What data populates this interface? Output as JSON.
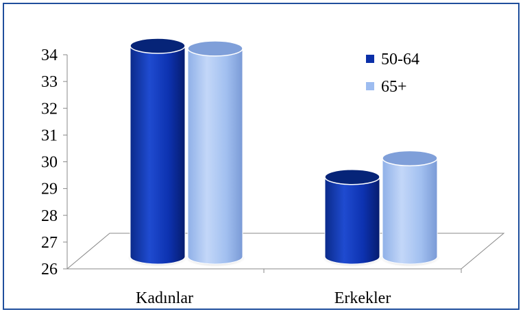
{
  "chart_data": {
    "type": "bar",
    "style": "3d-cylinder",
    "categories": [
      "Kadınlar",
      "Erkekler"
    ],
    "series": [
      {
        "name": "50-64",
        "values": [
          34.0,
          29.1
        ],
        "color": "#0a2fa8"
      },
      {
        "name": "65+",
        "values": [
          33.9,
          29.8
        ],
        "color": "#9dbcf0"
      }
    ],
    "ylim": [
      26,
      34
    ],
    "yticks": [
      "26",
      "27",
      "28",
      "29",
      "30",
      "31",
      "32",
      "33",
      "34"
    ],
    "grid": false,
    "legend_position": "top-right",
    "title": "",
    "xlabel": "",
    "ylabel": ""
  },
  "colors": {
    "frame_border": "#1f4e9c",
    "floor_fill": "#ffffff",
    "floor_edge": "#888888"
  }
}
